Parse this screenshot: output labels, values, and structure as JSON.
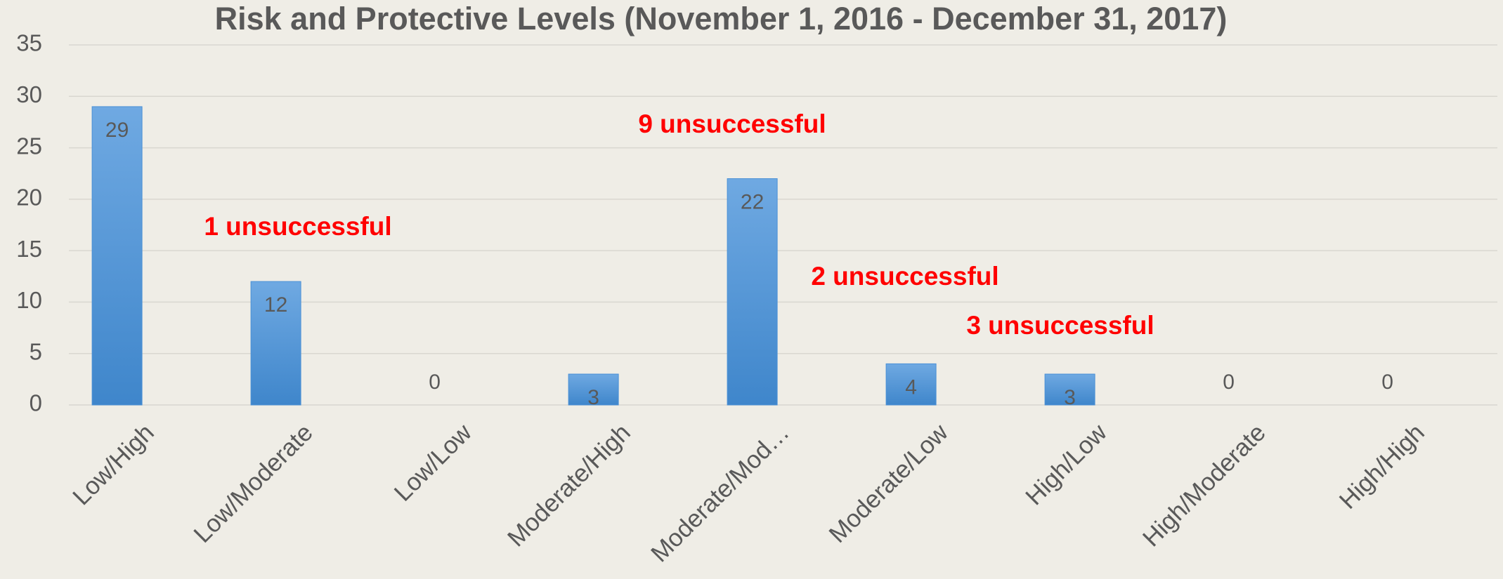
{
  "chart_data": {
    "type": "bar",
    "title": "Risk and Protective Levels (November 1, 2016 - December 31, 2017)",
    "categories": [
      "Low/High",
      "Low/Moderate",
      "Low/Low",
      "Moderate/High",
      "Moderate/Mod…",
      "Moderate/Low",
      "High/Low",
      "High/Moderate",
      "High/High"
    ],
    "values": [
      29,
      12,
      0,
      3,
      22,
      4,
      3,
      0,
      0
    ],
    "color": "#4a90d6",
    "ylim": [
      0,
      35
    ],
    "yticks": [
      0,
      5,
      10,
      15,
      20,
      25,
      30,
      35
    ],
    "grid": true,
    "annotations": [
      "1 unsuccessful",
      "9 unsuccessful",
      "2 unsuccessful",
      "3 unsuccessful"
    ]
  }
}
